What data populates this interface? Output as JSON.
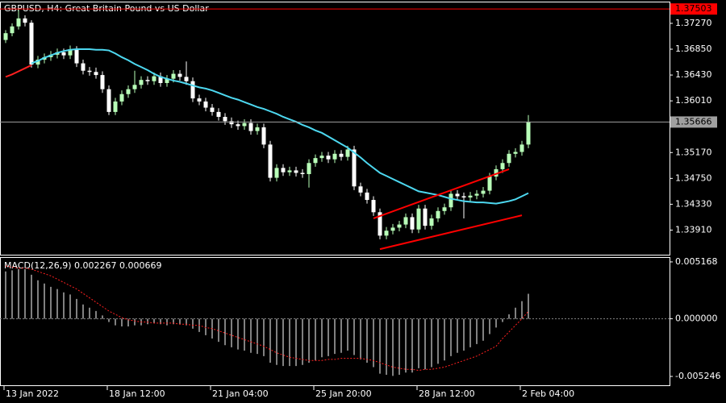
{
  "chart_data": [
    {
      "type": "candlestick",
      "title": "GBPUSD, H4:  Great Britain Pound vs US Dollar",
      "categories": [
        "13 Jan 2022",
        null,
        null,
        null,
        null,
        null,
        null,
        null,
        null,
        null,
        null,
        null,
        null,
        null,
        null,
        null,
        "18 Jan 12:00",
        null,
        null,
        null,
        null,
        null,
        null,
        null,
        null,
        null,
        null,
        null,
        null,
        null,
        null,
        null,
        "21 Jan 04:00",
        null,
        null,
        null,
        null,
        null,
        null,
        null,
        null,
        null,
        null,
        null,
        null,
        null,
        null,
        null,
        "25 Jan 20:00",
        null,
        null,
        null,
        null,
        null,
        null,
        null,
        null,
        null,
        null,
        null,
        null,
        null,
        null,
        null,
        "28 Jan 12:00",
        null,
        null,
        null,
        null,
        null,
        null,
        null,
        null,
        null,
        null,
        null,
        null,
        null,
        null,
        null,
        "2 Feb 04:00",
        null
      ],
      "open": [
        1.37,
        1.3711,
        1.3722,
        1.3735,
        1.3728,
        1.366,
        1.3668,
        1.3672,
        1.3676,
        1.368,
        1.3675,
        1.3685,
        1.3662,
        1.365,
        1.3648,
        1.3643,
        1.362,
        1.3583,
        1.36,
        1.3612,
        1.362,
        1.3627,
        1.3635,
        1.3633,
        1.3641,
        1.363,
        1.3637,
        1.3645,
        1.364,
        1.3633,
        1.3605,
        1.36,
        1.359,
        1.3583,
        1.3575,
        1.3568,
        1.3563,
        1.356,
        1.3565,
        1.3552,
        1.3558,
        1.353,
        1.3476,
        1.3492,
        1.3485,
        1.3488,
        1.3484,
        1.3482,
        1.35,
        1.3508,
        1.3512,
        1.3506,
        1.3515,
        1.351,
        1.3522,
        1.3462,
        1.3452,
        1.344,
        1.342,
        1.3382,
        1.339,
        1.3395,
        1.34,
        1.3412,
        1.3392,
        1.3426,
        1.3398,
        1.341,
        1.3422,
        1.3428,
        1.345,
        1.3446,
        1.3444,
        1.3447,
        1.345,
        1.3455,
        1.3478,
        1.349,
        1.35,
        1.3515,
        1.3518,
        1.353
      ],
      "high": [
        1.3716,
        1.3727,
        1.37503,
        1.374,
        1.3732,
        1.3674,
        1.3678,
        1.3682,
        1.3686,
        1.3686,
        1.3691,
        1.369,
        1.3668,
        1.3656,
        1.3655,
        1.3649,
        1.3626,
        1.3606,
        1.3618,
        1.3626,
        1.365,
        1.3641,
        1.3641,
        1.3647,
        1.3647,
        1.3643,
        1.3651,
        1.3651,
        1.3665,
        1.3639,
        1.3611,
        1.3606,
        1.3596,
        1.3589,
        1.3581,
        1.3574,
        1.3569,
        1.3571,
        1.3571,
        1.3564,
        1.3564,
        1.3536,
        1.3498,
        1.3498,
        1.3494,
        1.3494,
        1.349,
        1.3506,
        1.3514,
        1.3518,
        1.3518,
        1.3521,
        1.3521,
        1.3528,
        1.3528,
        1.3468,
        1.3458,
        1.3446,
        1.3426,
        1.3396,
        1.3401,
        1.3406,
        1.3418,
        1.3418,
        1.3432,
        1.3432,
        1.3416,
        1.3428,
        1.3434,
        1.3456,
        1.3456,
        1.3452,
        1.3453,
        1.3456,
        1.3461,
        1.3484,
        1.3496,
        1.3506,
        1.3521,
        1.3524,
        1.3536,
        1.3578
      ],
      "low": [
        1.3695,
        1.3706,
        1.3717,
        1.3722,
        1.3655,
        1.3654,
        1.3662,
        1.3666,
        1.367,
        1.3669,
        1.3669,
        1.3656,
        1.3644,
        1.3642,
        1.3637,
        1.3614,
        1.3578,
        1.3578,
        1.3594,
        1.3606,
        1.3614,
        1.3621,
        1.3627,
        1.3627,
        1.3624,
        1.3624,
        1.3631,
        1.3634,
        1.3627,
        1.3599,
        1.3594,
        1.3584,
        1.3577,
        1.3569,
        1.3562,
        1.3557,
        1.3554,
        1.3554,
        1.3546,
        1.3546,
        1.3524,
        1.347,
        1.347,
        1.3479,
        1.3479,
        1.3478,
        1.3476,
        1.346,
        1.3494,
        1.3502,
        1.35,
        1.35,
        1.3504,
        1.3504,
        1.3456,
        1.3446,
        1.3434,
        1.3414,
        1.3376,
        1.3376,
        1.3384,
        1.3389,
        1.3394,
        1.3386,
        1.3386,
        1.3392,
        1.3392,
        1.3404,
        1.3416,
        1.3422,
        1.344,
        1.341,
        1.3438,
        1.3441,
        1.3444,
        1.3449,
        1.3472,
        1.3484,
        1.3494,
        1.3509,
        1.3512,
        1.3524
      ],
      "close": [
        1.3711,
        1.3722,
        1.3735,
        1.3728,
        1.366,
        1.3668,
        1.3672,
        1.3676,
        1.368,
        1.3675,
        1.3685,
        1.3662,
        1.365,
        1.3648,
        1.3643,
        1.362,
        1.3583,
        1.36,
        1.3612,
        1.362,
        1.3627,
        1.3635,
        1.3633,
        1.3641,
        1.363,
        1.3637,
        1.3645,
        1.364,
        1.3633,
        1.3605,
        1.36,
        1.359,
        1.3583,
        1.3575,
        1.3568,
        1.3563,
        1.356,
        1.3565,
        1.3552,
        1.3558,
        1.353,
        1.3476,
        1.3492,
        1.3485,
        1.3488,
        1.3484,
        1.3482,
        1.35,
        1.3508,
        1.3512,
        1.3506,
        1.3515,
        1.351,
        1.3522,
        1.3462,
        1.3452,
        1.344,
        1.342,
        1.3382,
        1.339,
        1.3395,
        1.34,
        1.3412,
        1.3392,
        1.3426,
        1.3398,
        1.341,
        1.3422,
        1.3428,
        1.345,
        1.3446,
        1.3444,
        1.3447,
        1.345,
        1.3455,
        1.3478,
        1.349,
        1.35,
        1.3515,
        1.3518,
        1.353,
        1.35666
      ],
      "up_color": "#b8ffb8",
      "down_color": "#ffffff",
      "series": [
        {
          "color": "#4dd8f0",
          "values": [
            null,
            null,
            null,
            null,
            1.3662,
            1.3666,
            1.3671,
            1.3675,
            1.3679,
            1.3682,
            1.3684,
            1.3685,
            1.3685,
            1.3685,
            1.3684,
            1.3684,
            1.3683,
            1.3678,
            1.3672,
            1.3667,
            1.3661,
            1.3656,
            1.3651,
            1.3645,
            1.364,
            1.3637,
            1.3634,
            1.3632,
            1.3629,
            1.3626,
            1.3623,
            1.3621,
            1.3618,
            1.3614,
            1.361,
            1.3606,
            1.3603,
            1.3599,
            1.3595,
            1.3591,
            1.3588,
            1.3584,
            1.358,
            1.3575,
            1.3571,
            1.3567,
            1.3562,
            1.3558,
            1.3553,
            1.3549,
            1.3543,
            1.3537,
            1.3531,
            1.3525,
            1.3517,
            1.3509,
            1.35,
            1.3492,
            1.3484,
            1.3479,
            1.3474,
            1.3469,
            1.3464,
            1.3459,
            1.3454,
            1.3452,
            1.345,
            1.3448,
            1.3445,
            1.3442,
            1.344,
            1.3438,
            1.3437,
            1.3436,
            1.3436,
            1.3435,
            1.3434,
            1.3436,
            1.3438,
            1.3441,
            1.3446,
            1.3451
          ]
        },
        {
          "color": "#ff2020",
          "values": [
            1.364,
            1.3644,
            1.3649,
            1.3654,
            1.3659,
            null,
            null,
            null,
            null,
            null,
            null,
            null,
            null,
            null,
            null,
            null,
            null,
            null,
            null,
            null,
            null,
            null,
            null,
            null,
            null,
            null,
            null,
            null,
            null,
            null,
            null,
            null,
            null,
            null,
            null,
            null,
            null,
            null,
            null,
            null,
            null,
            null,
            null,
            null,
            null,
            null,
            null,
            null,
            null,
            null,
            null,
            null,
            null,
            null,
            null,
            null,
            null,
            null,
            null,
            null,
            null,
            null,
            null,
            null,
            null,
            null,
            null,
            null,
            null,
            null,
            null,
            null,
            null,
            null,
            null,
            null,
            null,
            null,
            null,
            null,
            null,
            null
          ]
        }
      ],
      "trendlines": [
        {
          "x": [
            57,
            78
          ],
          "y": [
            1.341,
            1.349
          ],
          "color": "#ff0000"
        },
        {
          "x": [
            58,
            80
          ],
          "y": [
            1.336,
            1.3415
          ],
          "color": "#ff0000"
        }
      ],
      "price_lines": [
        {
          "value": 1.37503,
          "label": "1.37503",
          "color": "#ff0000"
        },
        {
          "value": 1.35666,
          "label": "1.35666",
          "color": "#a0a0a0"
        }
      ],
      "ylim": [
        1.3351,
        1.3761
      ],
      "yticks": [
        {
          "value": 1.3391,
          "label": "1.33910"
        },
        {
          "value": 1.3433,
          "label": "1.34330"
        },
        {
          "value": 1.3475,
          "label": "1.34750"
        },
        {
          "value": 1.3517,
          "label": "1.35170"
        },
        {
          "value": 1.3601,
          "label": "1.36010"
        },
        {
          "value": 1.3643,
          "label": "1.36430"
        },
        {
          "value": 1.3685,
          "label": "1.36850"
        },
        {
          "value": 1.3727,
          "label": "1.37270"
        }
      ]
    },
    {
      "type": "macd",
      "title": "MACD(12,26,9) 0.002267 0.000669",
      "color": "#ffffff",
      "values": [
        0.0043,
        0.0044,
        0.0045,
        0.0045,
        0.004,
        0.0035,
        0.0032,
        0.0029,
        0.0027,
        0.0024,
        0.0022,
        0.0018,
        0.0013,
        0.001,
        0.0007,
        0.0003,
        -0.0003,
        -0.0006,
        -0.0007,
        -0.0007,
        -0.0006,
        -0.0006,
        -0.0005,
        -0.0004,
        -0.0005,
        -0.0006,
        -0.0005,
        -0.0005,
        -0.0006,
        -0.0009,
        -0.0012,
        -0.0015,
        -0.0018,
        -0.0021,
        -0.0024,
        -0.0026,
        -0.0028,
        -0.0029,
        -0.0031,
        -0.0032,
        -0.0034,
        -0.004,
        -0.0042,
        -0.0043,
        -0.0043,
        -0.0043,
        -0.0042,
        -0.004,
        -0.0038,
        -0.0035,
        -0.0034,
        -0.0032,
        -0.0031,
        -0.0029,
        -0.0033,
        -0.0037,
        -0.004,
        -0.0044,
        -0.005,
        -0.0051,
        -0.0052,
        -0.0051,
        -0.0049,
        -0.0049,
        -0.0045,
        -0.0046,
        -0.0044,
        -0.0041,
        -0.0038,
        -0.0034,
        -0.0031,
        -0.0029,
        -0.0026,
        -0.0023,
        -0.002,
        -0.0014,
        -0.0008,
        -0.0003,
        0.0004,
        0.001,
        0.0016,
        0.002267
      ],
      "series": [
        {
          "color": "#ff2020",
          "values": [
            0.0048,
            0.0047,
            0.0046,
            0.0046,
            0.0045,
            0.0043,
            0.0041,
            0.0039,
            0.0036,
            0.0033,
            0.003,
            0.0027,
            0.0023,
            0.0019,
            0.0015,
            0.0011,
            0.0007,
            0.0004,
            0.0001,
            -0.0001,
            -0.0002,
            -0.0003,
            -0.0003,
            -0.0004,
            -0.0004,
            -0.0004,
            -0.0004,
            -0.0005,
            -0.0005,
            -0.0006,
            -0.0006,
            -0.0008,
            -0.0009,
            -0.0011,
            -0.0013,
            -0.0015,
            -0.0017,
            -0.0019,
            -0.0021,
            -0.0023,
            -0.0025,
            -0.0028,
            -0.0031,
            -0.0033,
            -0.0035,
            -0.0036,
            -0.0037,
            -0.0038,
            -0.0038,
            -0.0038,
            -0.0037,
            -0.0037,
            -0.0036,
            -0.0036,
            -0.0036,
            -0.0036,
            -0.0037,
            -0.0038,
            -0.004,
            -0.0042,
            -0.0044,
            -0.0045,
            -0.0046,
            -0.0046,
            -0.0047,
            -0.0046,
            -0.0046,
            -0.0045,
            -0.0044,
            -0.0042,
            -0.004,
            -0.0038,
            -0.0036,
            -0.0034,
            -0.0031,
            -0.0028,
            -0.0025,
            -0.0018,
            -0.0012,
            -0.0006,
            0.0,
            0.000669
          ]
        }
      ],
      "ylim": [
        -0.00605,
        0.00553
      ],
      "yticks": [
        {
          "value": -0.005246,
          "label": "-0.005246"
        },
        {
          "value": 0,
          "label": "0.000000"
        },
        {
          "value": 0.005168,
          "label": "0.005168"
        }
      ]
    }
  ]
}
